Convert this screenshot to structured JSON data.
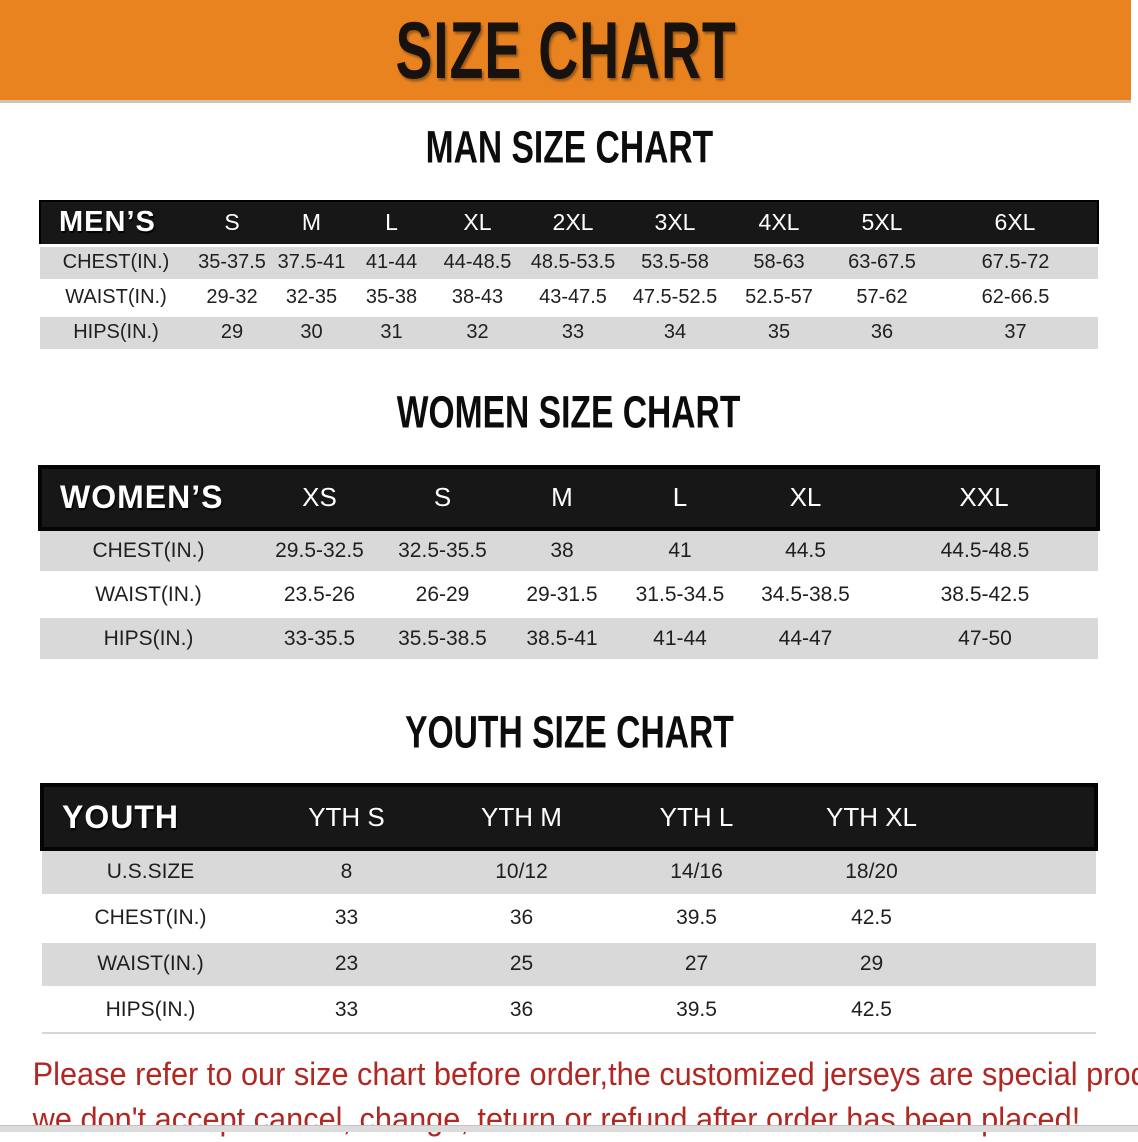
{
  "banner": {
    "title": "SIZE CHART"
  },
  "sections": [
    {
      "heading": "MAN SIZE CHART",
      "header_label": "MEN’S",
      "columns": [
        "S",
        "M",
        "L",
        "XL",
        "2XL",
        "3XL",
        "4XL",
        "5XL",
        "6XL"
      ],
      "rows": [
        {
          "label": "CHEST(IN.)",
          "values": [
            "35-37.5",
            "37.5-41",
            "41-44",
            "44-48.5",
            "48.5-53.5",
            "53.5-58",
            "58-63",
            "63-67.5",
            "67.5-72"
          ]
        },
        {
          "label": "WAIST(IN.)",
          "values": [
            "29-32",
            "32-35",
            "35-38",
            "38-43",
            "43-47.5",
            "47.5-52.5",
            "52.5-57",
            "57-62",
            "62-66.5"
          ]
        },
        {
          "label": "HIPS(IN.)",
          "values": [
            "29",
            "30",
            "31",
            "32",
            "33",
            "34",
            "35",
            "36",
            "37"
          ]
        }
      ]
    },
    {
      "heading": "WOMEN SIZE CHART",
      "header_label": "WOMEN’S",
      "columns": [
        "XS",
        "S",
        "M",
        "L",
        "XL",
        "XXL"
      ],
      "rows": [
        {
          "label": "CHEST(IN.)",
          "values": [
            "29.5-32.5",
            "32.5-35.5",
            "38",
            "41",
            "44.5",
            "44.5-48.5"
          ]
        },
        {
          "label": "WAIST(IN.)",
          "values": [
            "23.5-26",
            "26-29",
            "29-31.5",
            "31.5-34.5",
            "34.5-38.5",
            "38.5-42.5"
          ]
        },
        {
          "label": "HIPS(IN.)",
          "values": [
            "33-35.5",
            "35.5-38.5",
            "38.5-41",
            "41-44",
            "44-47",
            "47-50"
          ]
        }
      ]
    },
    {
      "heading": "YOUTH SIZE CHART",
      "header_label": "YOUTH",
      "columns": [
        "YTH S",
        "YTH M",
        "YTH L",
        "YTH XL"
      ],
      "rows": [
        {
          "label": "U.S.SIZE",
          "values": [
            "8",
            "10/12",
            "14/16",
            "18/20"
          ]
        },
        {
          "label": "CHEST(IN.)",
          "values": [
            "33",
            "36",
            "39.5",
            "42.5"
          ]
        },
        {
          "label": "WAIST(IN.)",
          "values": [
            "23",
            "25",
            "27",
            "29"
          ]
        },
        {
          "label": "HIPS(IN.)",
          "values": [
            "33",
            "36",
            "39.5",
            "42.5"
          ]
        }
      ]
    }
  ],
  "disclaimer": {
    "lines": [
      "Please refer to our size chart before order,the customized jerseys are special products,",
      "we don't accept cancel, change, teturn or refund after order has been placed!"
    ]
  },
  "colors": {
    "banner_bg": "#e8831f",
    "header_bg": "#171717",
    "header_text": "#ffffff",
    "row_gray": "#d9d9d9",
    "cell_text": "#1f1f1f",
    "disclaimer_red": "#b12822"
  }
}
